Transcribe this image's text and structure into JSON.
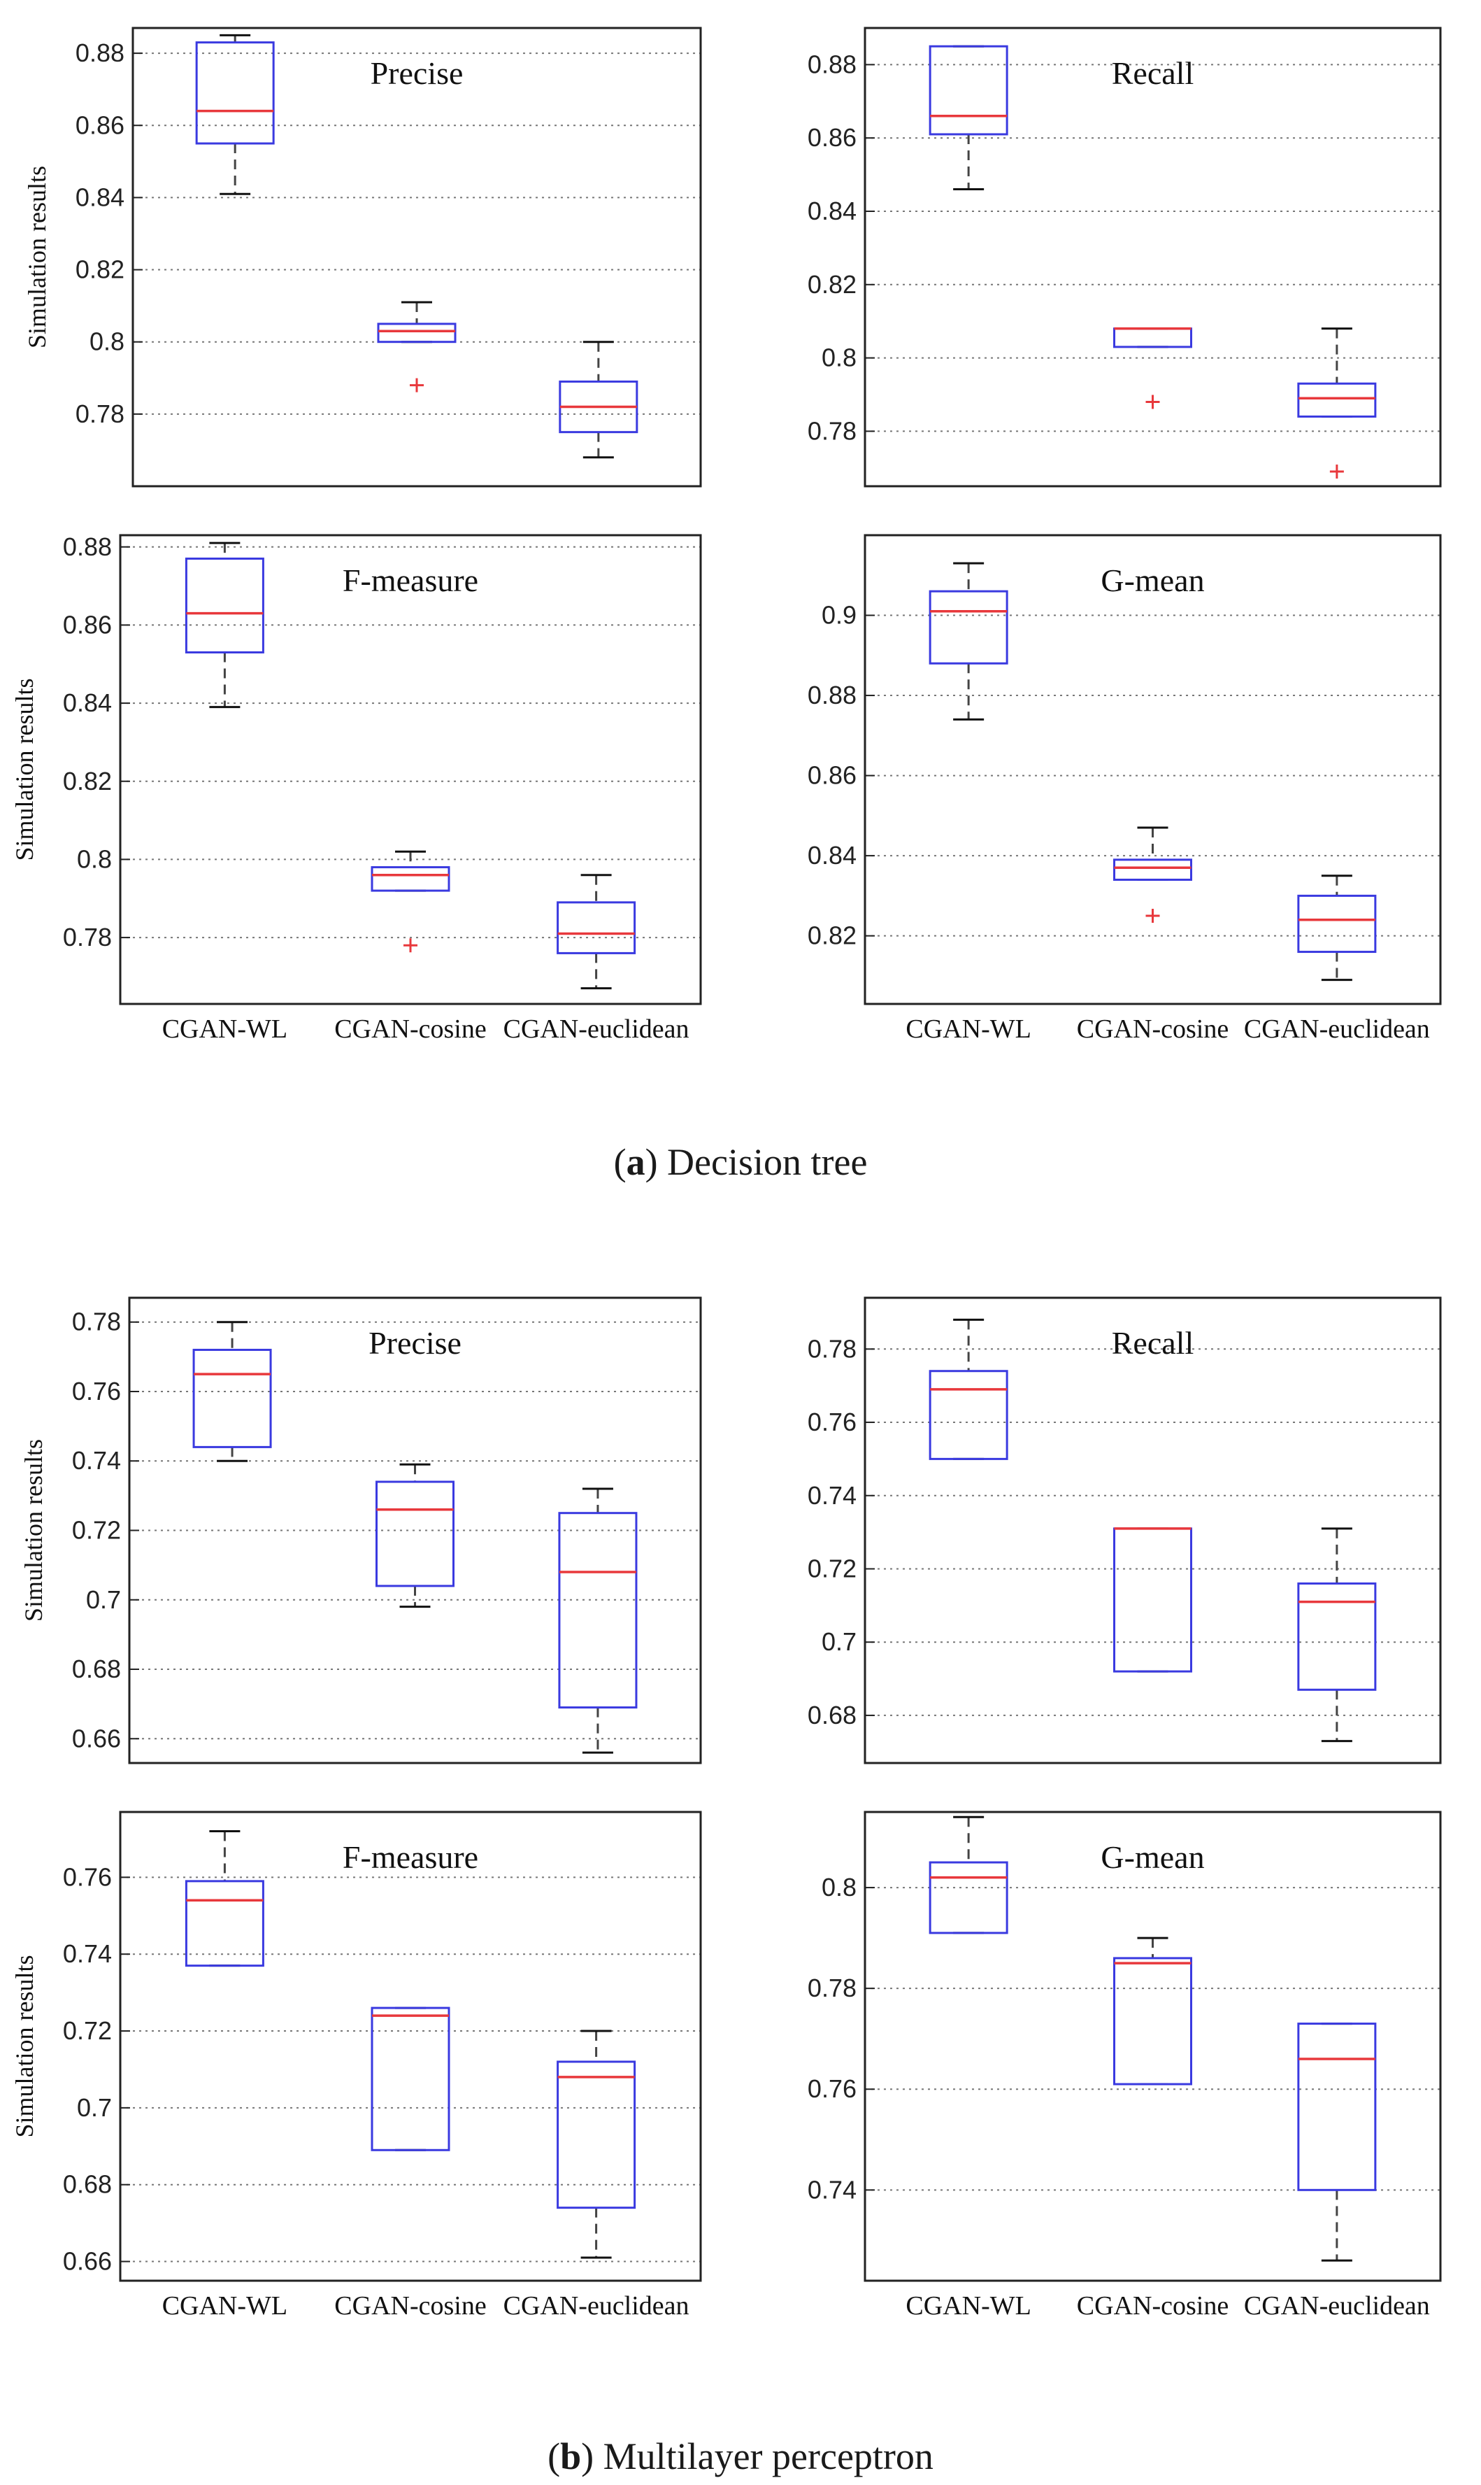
{
  "colors": {
    "box": "#3a3ae0",
    "median": "#e8383c",
    "outlier": "#e8383c",
    "whisker": "#444444",
    "grid": "#777777",
    "axes": "#222222"
  },
  "captions": [
    {
      "letter": "a",
      "text": "Decision tree"
    },
    {
      "letter": "b",
      "text": "Multilayer perceptron"
    }
  ],
  "chart_data": [
    {
      "type": "box",
      "panel": "a",
      "title": "Precise",
      "ylabel": "Simulation results",
      "xlabel": "",
      "ylim": [
        0.76,
        0.887
      ],
      "yticks": [
        0.78,
        0.8,
        0.82,
        0.84,
        0.86,
        0.88
      ],
      "ytick_labels": [
        "0.78",
        "0.8",
        "0.82",
        "0.84",
        "0.86",
        "0.88"
      ],
      "categories": [
        "CGAN-WL",
        "CGAN-cosine",
        "CGAN-euclidean"
      ],
      "show_xlabels": false,
      "boxes": [
        {
          "min": 0.841,
          "q1": 0.855,
          "median": 0.864,
          "q3": 0.883,
          "max": 0.885,
          "outliers": []
        },
        {
          "min": 0.8,
          "q1": 0.8,
          "median": 0.803,
          "q3": 0.805,
          "max": 0.811,
          "outliers": [
            0.788
          ]
        },
        {
          "min": 0.768,
          "q1": 0.775,
          "median": 0.782,
          "q3": 0.789,
          "max": 0.8,
          "outliers": []
        }
      ]
    },
    {
      "type": "box",
      "panel": "a",
      "title": "Recall",
      "ylabel": "",
      "xlabel": "",
      "ylim": [
        0.765,
        0.89
      ],
      "yticks": [
        0.78,
        0.8,
        0.82,
        0.84,
        0.86,
        0.88
      ],
      "ytick_labels": [
        "0.78",
        "0.8",
        "0.82",
        "0.84",
        "0.86",
        "0.88"
      ],
      "categories": [
        "CGAN-WL",
        "CGAN-cosine",
        "CGAN-euclidean"
      ],
      "show_xlabels": false,
      "boxes": [
        {
          "min": 0.846,
          "q1": 0.861,
          "median": 0.866,
          "q3": 0.885,
          "max": 0.885,
          "outliers": []
        },
        {
          "min": 0.803,
          "q1": 0.803,
          "median": 0.808,
          "q3": 0.808,
          "max": 0.808,
          "outliers": [
            0.788
          ]
        },
        {
          "min": 0.784,
          "q1": 0.784,
          "median": 0.789,
          "q3": 0.793,
          "max": 0.808,
          "outliers": [
            0.769
          ]
        }
      ]
    },
    {
      "type": "box",
      "panel": "a",
      "title": "F-measure",
      "ylabel": "Simulation results",
      "xlabel": "",
      "ylim": [
        0.763,
        0.883
      ],
      "yticks": [
        0.78,
        0.8,
        0.82,
        0.84,
        0.86,
        0.88
      ],
      "ytick_labels": [
        "0.78",
        "0.8",
        "0.82",
        "0.84",
        "0.86",
        "0.88"
      ],
      "categories": [
        "CGAN-WL",
        "CGAN-cosine",
        "CGAN-euclidean"
      ],
      "show_xlabels": true,
      "boxes": [
        {
          "min": 0.839,
          "q1": 0.853,
          "median": 0.863,
          "q3": 0.877,
          "max": 0.881,
          "outliers": []
        },
        {
          "min": 0.792,
          "q1": 0.792,
          "median": 0.796,
          "q3": 0.798,
          "max": 0.802,
          "outliers": [
            0.778
          ]
        },
        {
          "min": 0.767,
          "q1": 0.776,
          "median": 0.781,
          "q3": 0.789,
          "max": 0.796,
          "outliers": []
        }
      ]
    },
    {
      "type": "box",
      "panel": "a",
      "title": "G-mean",
      "ylabel": "",
      "xlabel": "",
      "ylim": [
        0.803,
        0.92
      ],
      "yticks": [
        0.82,
        0.84,
        0.86,
        0.88,
        0.9
      ],
      "ytick_labels": [
        "0.82",
        "0.84",
        "0.86",
        "0.88",
        "0.9"
      ],
      "categories": [
        "CGAN-WL",
        "CGAN-cosine",
        "CGAN-euclidean"
      ],
      "show_xlabels": true,
      "boxes": [
        {
          "min": 0.874,
          "q1": 0.888,
          "median": 0.901,
          "q3": 0.906,
          "max": 0.913,
          "outliers": []
        },
        {
          "min": 0.834,
          "q1": 0.834,
          "median": 0.837,
          "q3": 0.839,
          "max": 0.847,
          "outliers": [
            0.825
          ]
        },
        {
          "min": 0.809,
          "q1": 0.816,
          "median": 0.824,
          "q3": 0.83,
          "max": 0.835,
          "outliers": []
        }
      ]
    },
    {
      "type": "box",
      "panel": "b",
      "title": "Precise",
      "ylabel": "Simulation results",
      "xlabel": "",
      "ylim": [
        0.653,
        0.787
      ],
      "yticks": [
        0.66,
        0.68,
        0.7,
        0.72,
        0.74,
        0.76,
        0.78
      ],
      "ytick_labels": [
        "0.66",
        "0.68",
        "0.7",
        "0.72",
        "0.74",
        "0.76",
        "0.78"
      ],
      "categories": [
        "CGAN-WL",
        "CGAN-cosine",
        "CGAN-euclidean"
      ],
      "show_xlabels": false,
      "boxes": [
        {
          "min": 0.74,
          "q1": 0.744,
          "median": 0.765,
          "q3": 0.772,
          "max": 0.78,
          "outliers": []
        },
        {
          "min": 0.698,
          "q1": 0.704,
          "median": 0.726,
          "q3": 0.734,
          "max": 0.739,
          "outliers": []
        },
        {
          "min": 0.656,
          "q1": 0.669,
          "median": 0.708,
          "q3": 0.725,
          "max": 0.732,
          "outliers": []
        }
      ]
    },
    {
      "type": "box",
      "panel": "b",
      "title": "Recall",
      "ylabel": "",
      "xlabel": "",
      "ylim": [
        0.667,
        0.794
      ],
      "yticks": [
        0.68,
        0.7,
        0.72,
        0.74,
        0.76,
        0.78
      ],
      "ytick_labels": [
        "0.68",
        "0.7",
        "0.72",
        "0.74",
        "0.76",
        "0.78"
      ],
      "categories": [
        "CGAN-WL",
        "CGAN-cosine",
        "CGAN-euclidean"
      ],
      "show_xlabels": false,
      "boxes": [
        {
          "min": 0.75,
          "q1": 0.75,
          "median": 0.769,
          "q3": 0.774,
          "max": 0.788,
          "outliers": []
        },
        {
          "min": 0.692,
          "q1": 0.692,
          "median": 0.731,
          "q3": 0.731,
          "max": 0.731,
          "outliers": []
        },
        {
          "min": 0.673,
          "q1": 0.687,
          "median": 0.711,
          "q3": 0.716,
          "max": 0.731,
          "outliers": []
        }
      ]
    },
    {
      "type": "box",
      "panel": "b",
      "title": "F-measure",
      "ylabel": "Simulation results",
      "xlabel": "",
      "ylim": [
        0.655,
        0.777
      ],
      "yticks": [
        0.66,
        0.68,
        0.7,
        0.72,
        0.74,
        0.76
      ],
      "ytick_labels": [
        "0.66",
        "0.68",
        "0.7",
        "0.72",
        "0.74",
        "0.76"
      ],
      "categories": [
        "CGAN-WL",
        "CGAN-cosine",
        "CGAN-euclidean"
      ],
      "show_xlabels": true,
      "boxes": [
        {
          "min": 0.737,
          "q1": 0.737,
          "median": 0.754,
          "q3": 0.759,
          "max": 0.772,
          "outliers": []
        },
        {
          "min": 0.689,
          "q1": 0.689,
          "median": 0.724,
          "q3": 0.726,
          "max": 0.726,
          "outliers": []
        },
        {
          "min": 0.661,
          "q1": 0.674,
          "median": 0.708,
          "q3": 0.712,
          "max": 0.72,
          "outliers": []
        }
      ]
    },
    {
      "type": "box",
      "panel": "b",
      "title": "G-mean",
      "ylabel": "",
      "xlabel": "",
      "ylim": [
        0.722,
        0.815
      ],
      "yticks": [
        0.74,
        0.76,
        0.78,
        0.8
      ],
      "ytick_labels": [
        "0.74",
        "0.76",
        "0.78",
        "0.8"
      ],
      "categories": [
        "CGAN-WL",
        "CGAN-cosine",
        "CGAN-euclidean"
      ],
      "show_xlabels": true,
      "boxes": [
        {
          "min": 0.791,
          "q1": 0.791,
          "median": 0.802,
          "q3": 0.805,
          "max": 0.814,
          "outliers": []
        },
        {
          "min": 0.761,
          "q1": 0.761,
          "median": 0.785,
          "q3": 0.786,
          "max": 0.79,
          "outliers": []
        },
        {
          "min": 0.726,
          "q1": 0.74,
          "median": 0.766,
          "q3": 0.773,
          "max": 0.773,
          "outliers": []
        }
      ]
    }
  ]
}
